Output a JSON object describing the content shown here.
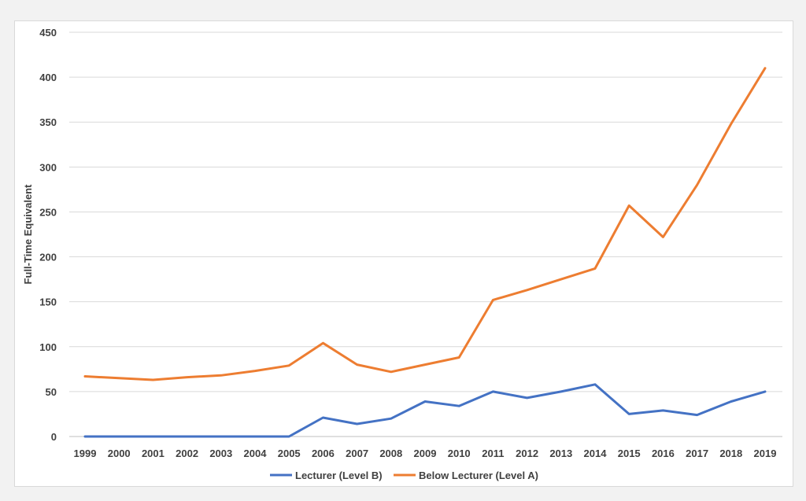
{
  "chart_data": {
    "type": "line",
    "title": "",
    "xlabel": "",
    "ylabel": "Full-Time Equivalent",
    "ylim": [
      0,
      450
    ],
    "yticks": [
      0,
      50,
      100,
      150,
      200,
      250,
      300,
      350,
      400,
      450
    ],
    "grid": true,
    "legend_position": "bottom",
    "x": [
      "1999",
      "2000",
      "2001",
      "2002",
      "2003",
      "2004",
      "2005",
      "2006",
      "2007",
      "2008",
      "2009",
      "2010",
      "2011",
      "2012",
      "2013",
      "2014",
      "2015",
      "2016",
      "2017",
      "2018",
      "2019"
    ],
    "series": [
      {
        "name": "Lecturer (Level B)",
        "color": "#4472c4",
        "values": [
          0,
          0,
          0,
          0,
          0,
          0,
          0,
          21,
          14,
          20,
          39,
          34,
          50,
          43,
          50,
          58,
          25,
          29,
          24,
          39,
          50
        ]
      },
      {
        "name": "Below Lecturer (Level A)",
        "color": "#ed7d31",
        "values": [
          67,
          65,
          63,
          66,
          68,
          73,
          79,
          104,
          80,
          72,
          80,
          88,
          152,
          163,
          175,
          187,
          257,
          222,
          280,
          348,
          410
        ]
      }
    ]
  }
}
